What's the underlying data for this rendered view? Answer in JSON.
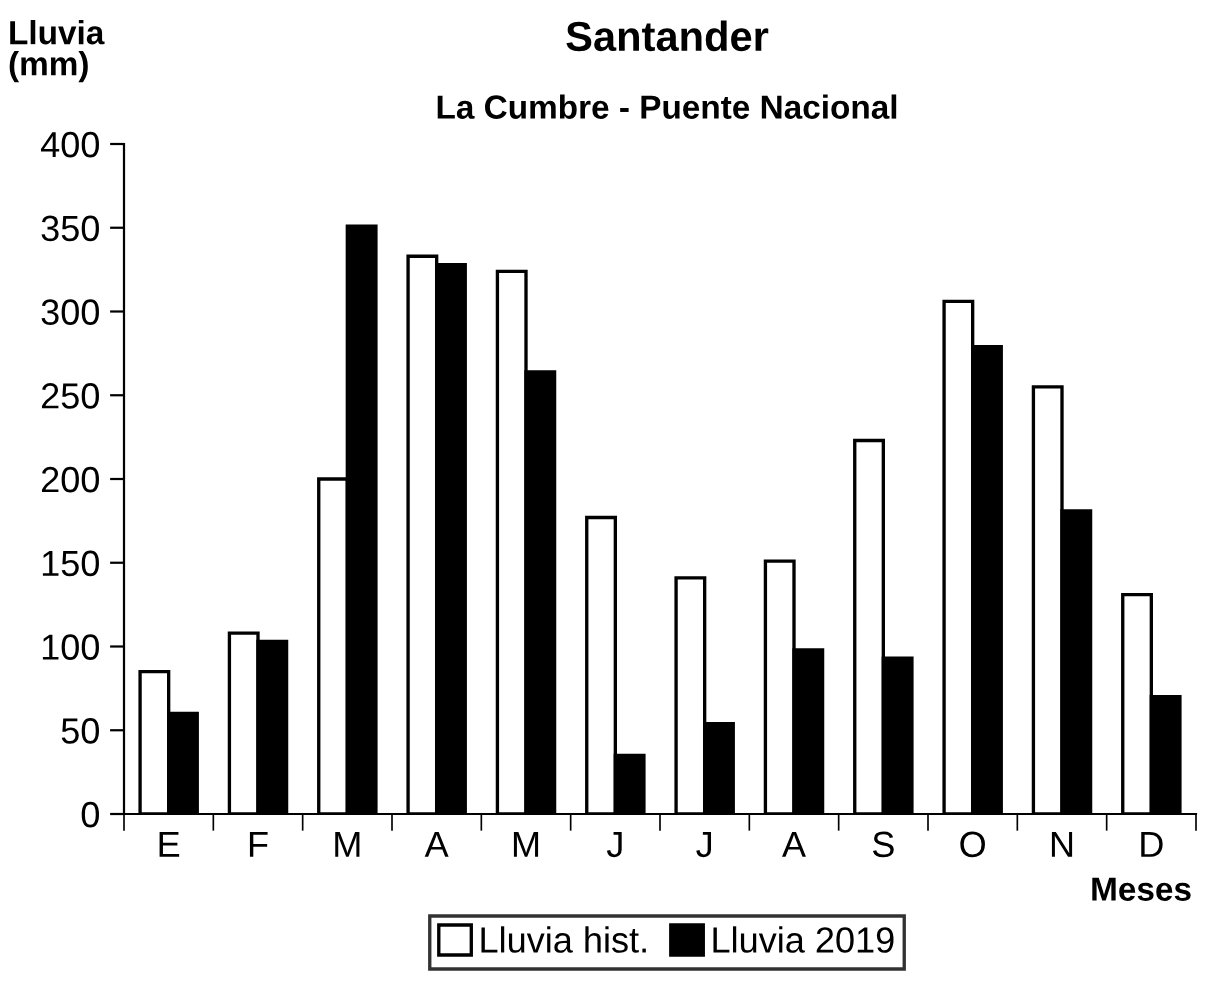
{
  "chart_data": {
    "type": "bar",
    "title": "Santander",
    "subtitle": "La Cumbre - Puente Nacional",
    "xlabel": "Meses",
    "ylabel": "Lluvia\n(mm)",
    "categories": [
      "E",
      "F",
      "M",
      "A",
      "M",
      "J",
      "J",
      "A",
      "S",
      "O",
      "N",
      "D"
    ],
    "series": [
      {
        "name": "Lluvia hist.",
        "color": "#ffffff",
        "values": [
          85,
          108,
          200,
          333,
          324,
          177,
          141,
          151,
          223,
          306,
          255,
          131
        ]
      },
      {
        "name": "Lluvia 2019",
        "color": "#000000",
        "values": [
          60,
          103,
          351,
          328,
          264,
          35,
          54,
          98,
          93,
          279,
          181,
          70
        ]
      }
    ],
    "ylim": [
      0,
      400
    ],
    "yticks": [
      0,
      50,
      100,
      150,
      200,
      250,
      300,
      350,
      400
    ],
    "grid": false,
    "legend": "bottom"
  }
}
